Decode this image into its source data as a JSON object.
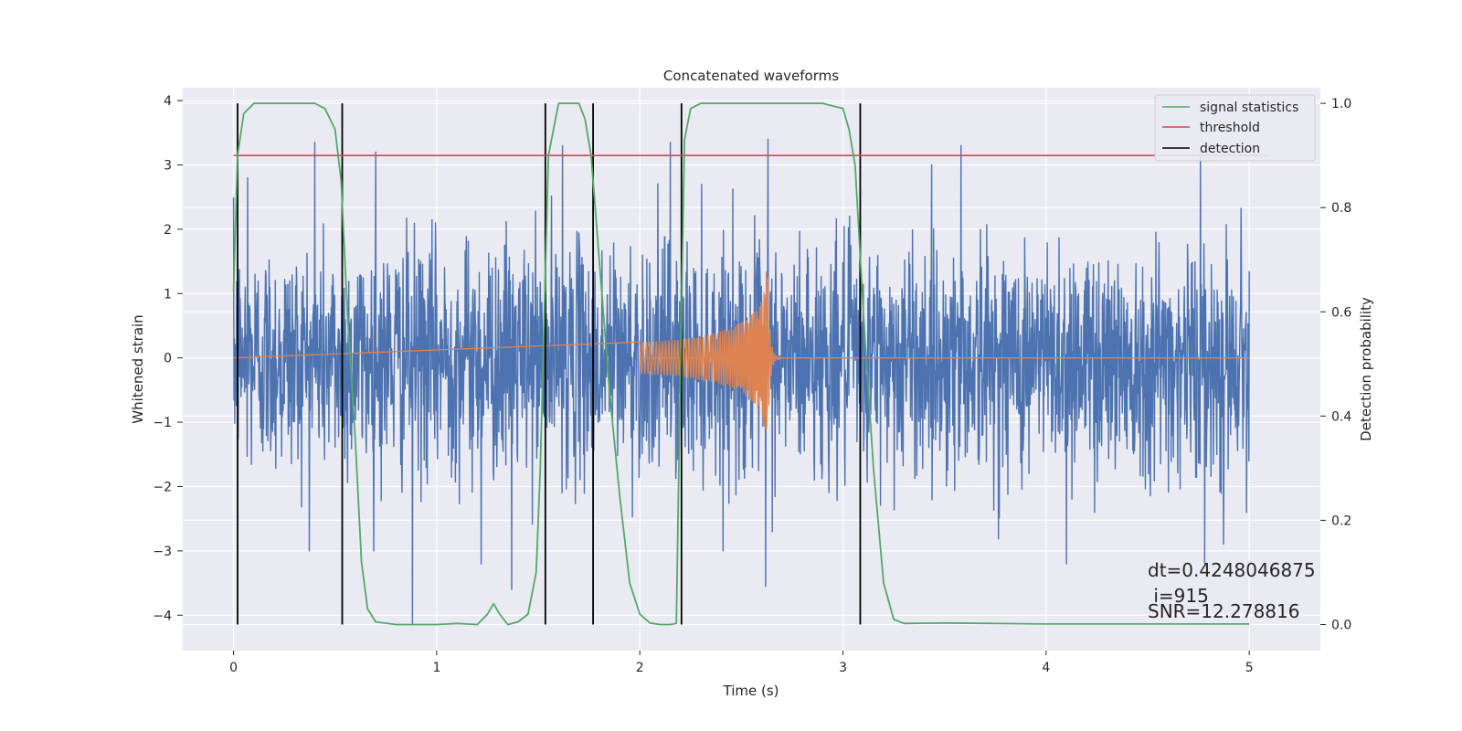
{
  "chart_data": {
    "type": "line",
    "title": "Concatenated waveforms",
    "xlabel": "Time (s)",
    "ylabel_left": "Whitened strain",
    "ylabel_right": "Detection probability",
    "xlim": [
      -0.25,
      5.35
    ],
    "ylim_left": [
      -4.55,
      4.2
    ],
    "ylim_right": [
      -0.05,
      1.03
    ],
    "grid": true,
    "legend_position": "top-right",
    "x_ticks": [
      0,
      1,
      2,
      3,
      4,
      5
    ],
    "y_ticks_left": [
      4,
      3,
      2,
      1,
      0,
      -1,
      -2,
      -3,
      -4
    ],
    "y_ticks_right": [
      1.0,
      0.8,
      0.6,
      0.4,
      0.2,
      0.0
    ],
    "x_tick_labels": [
      "0",
      "1",
      "2",
      "3",
      "4",
      "5"
    ],
    "y_tick_labels_left": [
      "4",
      "3",
      "2",
      "1",
      "0",
      "−1",
      "−2",
      "−3",
      "−4"
    ],
    "y_tick_labels_right": [
      "1.0",
      "0.8",
      "0.6",
      "0.4",
      "0.2",
      "0.0"
    ],
    "series": [
      {
        "name": "signal statistics",
        "axis": "right",
        "color": "#55a868",
        "x": [
          0.0,
          0.02,
          0.05,
          0.1,
          0.2,
          0.3,
          0.4,
          0.45,
          0.5,
          0.53,
          0.56,
          0.6,
          0.63,
          0.66,
          0.7,
          0.8,
          0.9,
          1.0,
          1.1,
          1.2,
          1.25,
          1.28,
          1.31,
          1.35,
          1.4,
          1.45,
          1.49,
          1.51,
          1.53,
          1.55,
          1.6,
          1.7,
          1.73,
          1.76,
          1.8,
          1.85,
          1.9,
          1.95,
          2.0,
          2.05,
          2.1,
          2.15,
          2.18,
          2.2,
          2.22,
          2.25,
          2.3,
          2.5,
          2.7,
          2.9,
          3.0,
          3.03,
          3.06,
          3.1,
          3.15,
          3.2,
          3.25,
          3.3,
          3.5,
          4.0,
          4.5,
          5.0
        ],
        "y": [
          0.64,
          0.9,
          0.98,
          1.0,
          1.0,
          1.0,
          1.0,
          0.99,
          0.95,
          0.85,
          0.6,
          0.35,
          0.12,
          0.03,
          0.005,
          0.0,
          0.0,
          0.0,
          0.002,
          0.0,
          0.02,
          0.04,
          0.02,
          0.0,
          0.005,
          0.02,
          0.1,
          0.3,
          0.6,
          0.9,
          1.0,
          1.0,
          0.97,
          0.9,
          0.7,
          0.45,
          0.25,
          0.08,
          0.02,
          0.003,
          0.0,
          0.0,
          0.002,
          0.5,
          0.93,
          0.99,
          1.0,
          1.0,
          1.0,
          1.0,
          0.99,
          0.95,
          0.88,
          0.6,
          0.3,
          0.08,
          0.01,
          0.002,
          0.003,
          0.001,
          0.001,
          0.001
        ]
      },
      {
        "name": "threshold",
        "axis": "right",
        "color": "#c44e52",
        "x": [
          0.0,
          5.1
        ],
        "y": [
          0.9,
          0.9
        ]
      },
      {
        "name": "detection",
        "axis": "right",
        "color": "#000000",
        "x": [
          0.02,
          0.535,
          1.535,
          1.77,
          2.205,
          3.085
        ],
        "y_range": [
          0.0,
          1.0
        ]
      },
      {
        "axis": "left",
        "color": "#4c72b0",
        "x_range": [
          0.0,
          5.0
        ],
        "amplitude_typical": 1.2,
        "peaks": [
          {
            "x": 0.4,
            "y": 3.35
          },
          {
            "x": 0.07,
            "y": 2.8
          },
          {
            "x": 0.7,
            "y": 3.2
          },
          {
            "x": 0.88,
            "y": -4.15
          },
          {
            "x": 1.22,
            "y": -3.2
          },
          {
            "x": 1.37,
            "y": -3.6
          },
          {
            "x": 1.62,
            "y": 3.3
          },
          {
            "x": 2.15,
            "y": 3.35
          },
          {
            "x": 2.63,
            "y": 3.4
          },
          {
            "x": 2.62,
            "y": -3.55
          },
          {
            "x": 3.58,
            "y": 3.3
          },
          {
            "x": 4.1,
            "y": -3.2
          },
          {
            "x": 4.76,
            "y": 3.2
          },
          {
            "x": 4.78,
            "y": -3.2
          }
        ]
      },
      {
        "axis": "left",
        "color": "#dd8452",
        "type": "chirp",
        "x_start": 2.0,
        "x_merger": 2.63,
        "x_ringdown_end": 2.7,
        "amp_start": 0.45,
        "amp_merger": 2.2,
        "amp_merger_neg": -1.5
      }
    ],
    "annotations": {
      "dt": "dt=0.4248046875",
      "i": " i=915",
      "snr": "SNR=12.278816"
    },
    "colors": {
      "axes_bg": "#eaeaf2",
      "grid": "#ffffff"
    }
  }
}
